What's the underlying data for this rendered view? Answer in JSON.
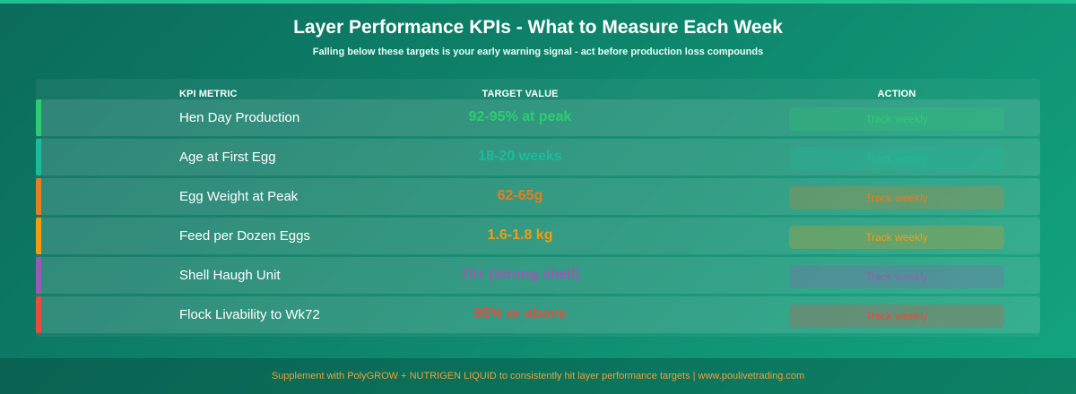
{
  "header": {
    "title": "Layer Performance KPIs - What to Measure Each Week",
    "subtitle": "Falling below these targets is your early warning signal - act before production loss compounds"
  },
  "table": {
    "columns": {
      "metric": "KPI METRIC",
      "target": "TARGET VALUE",
      "action": "ACTION"
    },
    "rows": [
      {
        "metric": "Hen Day Production",
        "target": "92-95% at peak",
        "action": "Track weekly",
        "color": "#2ecc71"
      },
      {
        "metric": "Age at First Egg",
        "target": "18-20 weeks",
        "action": "Track weekly",
        "color": "#1abc9c"
      },
      {
        "metric": "Egg Weight at Peak",
        "target": "62-65g",
        "action": "Track weekly",
        "color": "#e67e22"
      },
      {
        "metric": "Feed per Dozen Eggs",
        "target": "1.6-1.8 kg",
        "action": "Track weekly",
        "color": "#f39c12"
      },
      {
        "metric": "Shell Haugh Unit",
        "target": "70+ (strong shell)",
        "action": "Track weekly",
        "color": "#9b59b6"
      },
      {
        "metric": "Flock Livability to Wk72",
        "target": "95% or above",
        "action": "Track weekly",
        "color": "#e74c3c"
      }
    ]
  },
  "footer": {
    "text": "Supplement with PolyGROW + NUTRIGEN LIQUID to consistently hit layer performance targets | www.poulivetrading.com"
  }
}
